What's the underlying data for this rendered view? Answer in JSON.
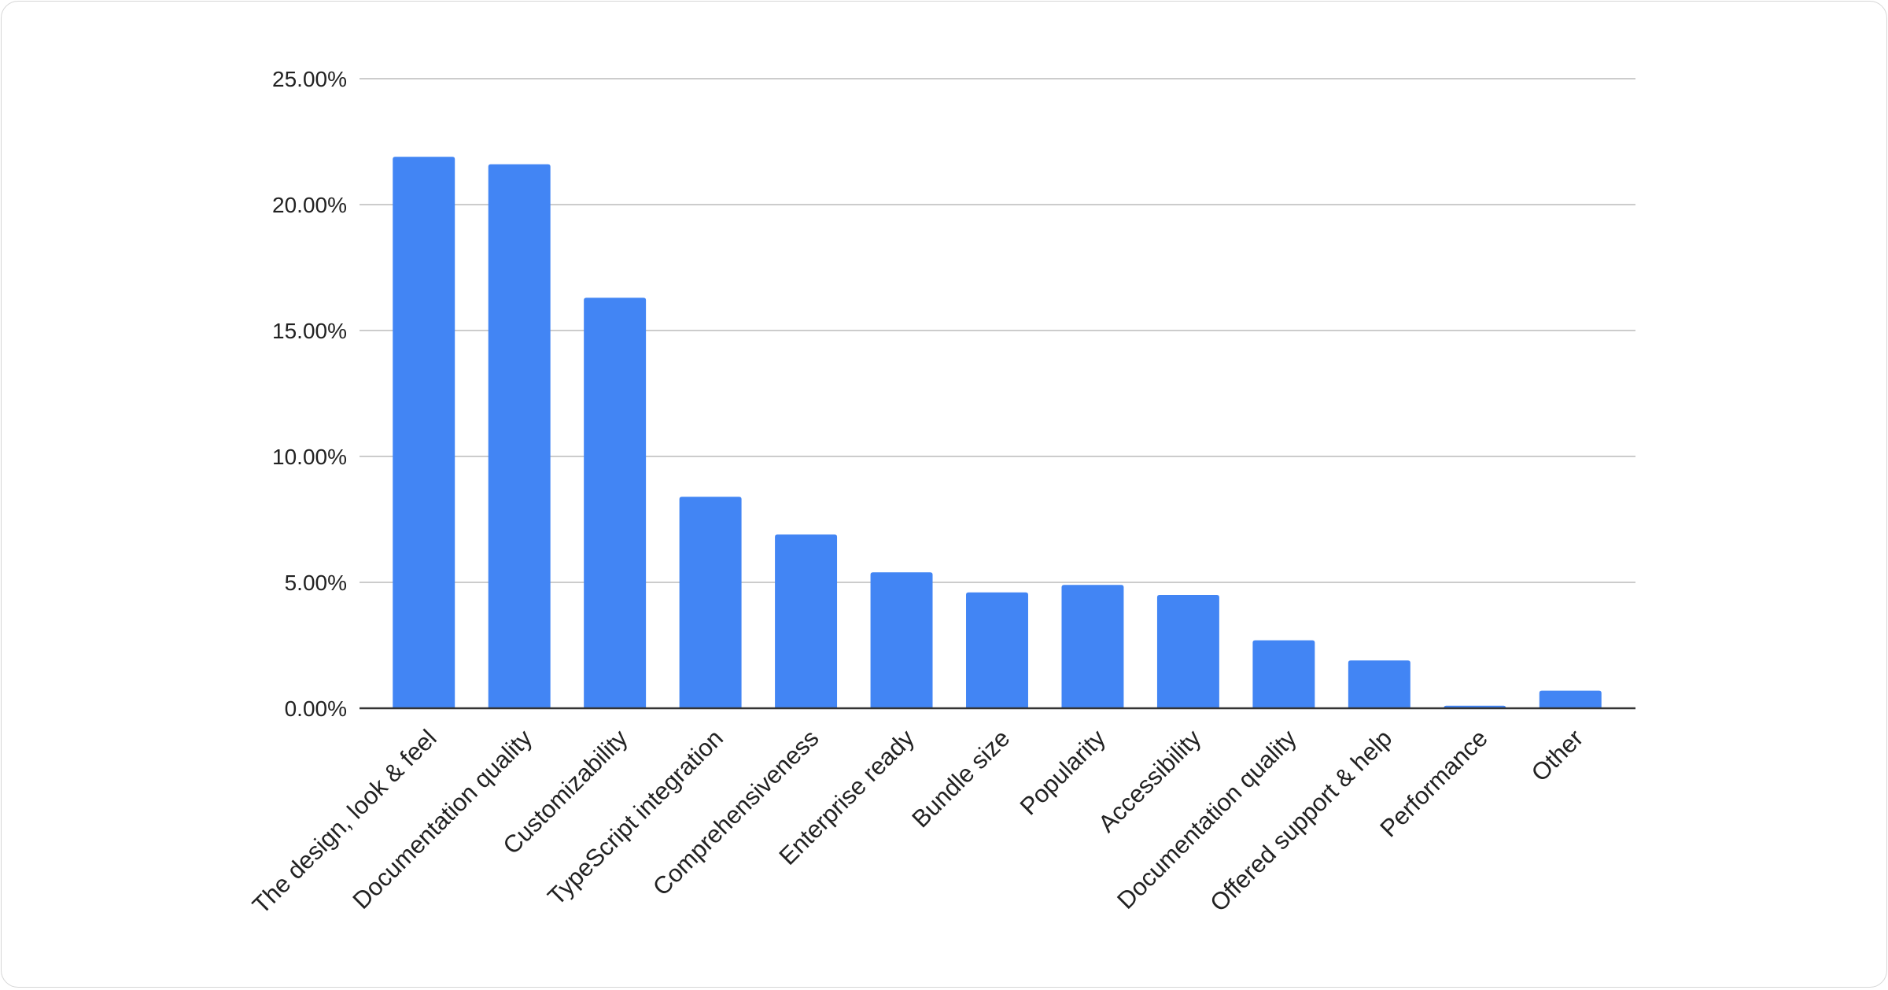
{
  "chart_data": {
    "type": "bar",
    "title": "",
    "xlabel": "",
    "ylabel": "",
    "categories": [
      "The design, look & feel",
      "Documentation quality",
      "Customizability",
      "TypeScript integration",
      "Comprehensiveness",
      "Enterprise ready",
      "Bundle size",
      "Popularity",
      "Accessibility",
      "Documentation quality",
      "Offered support & help",
      "Performance",
      "Other"
    ],
    "values": [
      21.9,
      21.6,
      16.3,
      8.4,
      6.9,
      5.4,
      4.6,
      4.9,
      4.5,
      2.7,
      1.9,
      0.1,
      0.7
    ],
    "ylim": [
      0,
      25
    ],
    "yticks": [
      "0.00%",
      "5.00%",
      "10.00%",
      "15.00%",
      "20.00%",
      "25.00%"
    ],
    "ytick_values": [
      0,
      5,
      10,
      15,
      20,
      25
    ],
    "grid": true,
    "legend": "none",
    "bar_color": "#4285f4",
    "grid_color": "#cccccc"
  }
}
